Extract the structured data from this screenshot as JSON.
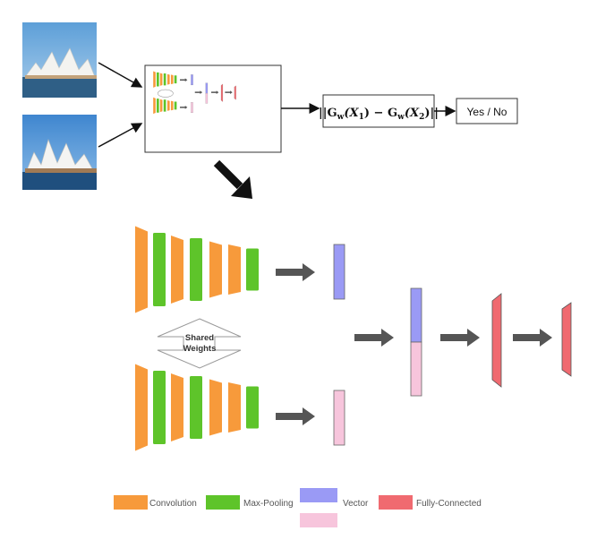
{
  "shared_weights": {
    "line1": "Shared",
    "line2": "Weights"
  },
  "distance": {
    "bar_left": "||",
    "g1": "G",
    "w1": "w",
    "x1_open": "(X",
    "x1_sub": "1",
    "x1_close": ")",
    "minus": " − ",
    "g2": "G",
    "w2": "w",
    "x2_open": "(X",
    "x2_sub": "2",
    "x2_close": ")",
    "bar_right": "||"
  },
  "output": {
    "label": "Yes / No"
  },
  "legend": [
    {
      "label": "Convolution",
      "color": "#f79a3b"
    },
    {
      "label": "Max-Pooling",
      "color": "#5ec42a"
    },
    {
      "label": "Vector",
      "color": "#9a9af5",
      "color2": "#f7c5dc"
    },
    {
      "label": "Fully-Connected",
      "color": "#f06a70"
    }
  ],
  "colors": {
    "convolution": "#f79a3b",
    "max_pooling": "#5ec42a",
    "vector_a": "#9a9af5",
    "vector_b": "#f7c5dc",
    "fully_connected": "#f06a70",
    "arrow": "#555555"
  },
  "images": [
    {
      "name": "opera-house-photo-1",
      "icon": "sydney-opera-house-photo"
    },
    {
      "name": "opera-house-photo-2",
      "icon": "sydney-opera-house-photo"
    }
  ]
}
